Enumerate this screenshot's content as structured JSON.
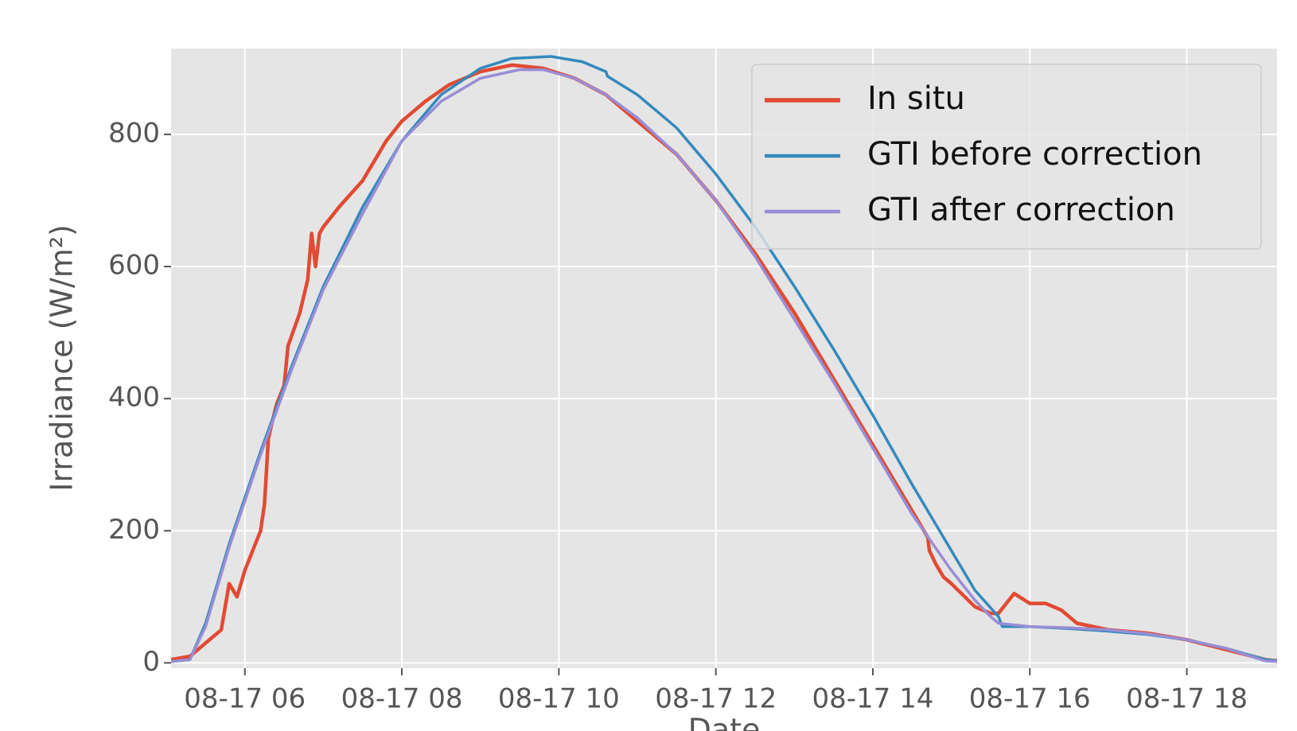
{
  "chart_data": {
    "type": "line",
    "xlabel": "Date",
    "ylabel": "Irradiance (W/m²)",
    "xlim": [
      5.06,
      19.15
    ],
    "ylim": [
      -8,
      930
    ],
    "xticks": [
      {
        "value": 6,
        "label": "08-17 06"
      },
      {
        "value": 8,
        "label": "08-17 08"
      },
      {
        "value": 10,
        "label": "08-17 10"
      },
      {
        "value": 12,
        "label": "08-17 12"
      },
      {
        "value": 14,
        "label": "08-17 14"
      },
      {
        "value": 16,
        "label": "08-17 16"
      },
      {
        "value": 18,
        "label": "08-17 18"
      }
    ],
    "yticks": [
      0,
      200,
      400,
      600,
      800
    ],
    "grid": true,
    "legend": "upper right",
    "series": [
      {
        "name": "In situ",
        "color": "#E24A33",
        "width": 4.5,
        "x": [
          5.06,
          5.3,
          5.5,
          5.7,
          5.8,
          5.9,
          6.0,
          6.1,
          6.2,
          6.25,
          6.3,
          6.4,
          6.5,
          6.55,
          6.7,
          6.8,
          6.85,
          6.9,
          6.95,
          7.0,
          7.2,
          7.5,
          7.8,
          8.0,
          8.3,
          8.6,
          9.0,
          9.4,
          9.8,
          10.2,
          10.6,
          11.0,
          11.5,
          12.0,
          12.5,
          13.0,
          13.5,
          14.0,
          14.5,
          14.7,
          14.72,
          14.8,
          14.9,
          15.0,
          15.3,
          15.5,
          15.6,
          15.8,
          16.0,
          16.2,
          16.4,
          16.6,
          17.0,
          17.5,
          18.0,
          18.5,
          19.0,
          19.15
        ],
        "values": [
          5,
          10,
          30,
          50,
          120,
          100,
          140,
          170,
          200,
          240,
          340,
          390,
          420,
          480,
          530,
          580,
          650,
          600,
          650,
          660,
          690,
          730,
          790,
          820,
          850,
          875,
          895,
          905,
          900,
          885,
          860,
          820,
          770,
          700,
          620,
          530,
          430,
          330,
          230,
          190,
          170,
          150,
          130,
          120,
          85,
          75,
          75,
          105,
          90,
          90,
          80,
          60,
          50,
          45,
          35,
          20,
          5,
          3
        ]
      },
      {
        "name": "GTI before correction",
        "color": "#348ABD",
        "width": 3.5,
        "x": [
          5.06,
          5.3,
          5.5,
          5.8,
          6.2,
          6.6,
          7.0,
          7.5,
          8.0,
          8.5,
          9.0,
          9.4,
          9.9,
          10.3,
          10.6,
          10.62,
          11.0,
          11.5,
          12.0,
          12.5,
          13.0,
          13.5,
          14.0,
          14.5,
          15.0,
          15.3,
          15.6,
          15.65,
          16.0,
          16.5,
          17.0,
          17.5,
          18.0,
          18.5,
          19.0,
          19.15
        ],
        "values": [
          2,
          5,
          60,
          180,
          320,
          450,
          570,
          690,
          790,
          860,
          900,
          915,
          918,
          910,
          895,
          888,
          860,
          810,
          740,
          660,
          570,
          475,
          375,
          270,
          170,
          110,
          70,
          55,
          55,
          52,
          48,
          43,
          35,
          22,
          5,
          3
        ]
      },
      {
        "name": "GTI after correction",
        "color": "#988ED5",
        "width": 3.5,
        "x": [
          5.06,
          5.3,
          5.5,
          5.8,
          6.2,
          6.6,
          7.0,
          7.5,
          8.0,
          8.5,
          9.0,
          9.5,
          9.8,
          10.2,
          10.6,
          11.0,
          11.5,
          12.0,
          12.5,
          13.0,
          13.5,
          14.0,
          14.5,
          15.0,
          15.3,
          15.5,
          15.6,
          16.0,
          16.5,
          17.0,
          17.5,
          18.0,
          18.5,
          19.0,
          19.15
        ],
        "values": [
          2,
          5,
          55,
          175,
          315,
          445,
          565,
          680,
          790,
          850,
          885,
          898,
          898,
          885,
          860,
          825,
          770,
          700,
          615,
          520,
          425,
          325,
          225,
          140,
          95,
          70,
          60,
          55,
          53,
          50,
          44,
          35,
          22,
          3,
          2
        ]
      }
    ]
  }
}
